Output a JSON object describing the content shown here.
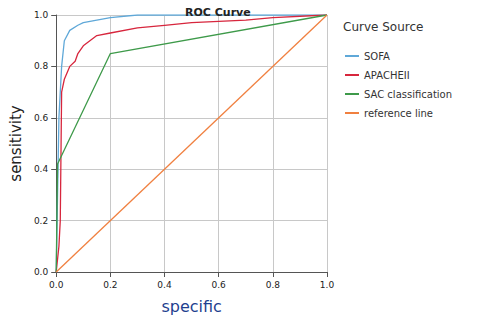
{
  "chart_data": {
    "type": "line",
    "title": "ROC Curve",
    "x_label": "specific",
    "y_label": "sensitivity",
    "legend_title": "Curve Source",
    "legend": "right",
    "grid": true,
    "xlim": [
      0,
      1
    ],
    "ylim": [
      0,
      1
    ],
    "xticks": [
      {
        "value": 0,
        "label": "0.0"
      },
      0.2,
      0.4,
      0.6,
      0.8,
      {
        "value": 1,
        "label": "1.0"
      }
    ],
    "yticks": [
      {
        "value": 0,
        "label": "0.0"
      },
      0.2,
      0.4,
      0.6,
      0.8,
      {
        "value": 1,
        "label": "1.0"
      }
    ],
    "series": [
      {
        "name": "SOFA",
        "color": "#5fa8d8",
        "x": [
          0,
          0.005,
          0.01,
          0.02,
          0.03,
          0.05,
          0.08,
          0.1,
          0.15,
          0.2,
          0.3,
          1
        ],
        "values": [
          0,
          0.3,
          0.6,
          0.8,
          0.9,
          0.94,
          0.96,
          0.97,
          0.98,
          0.99,
          1,
          1
        ]
      },
      {
        "name": "APACHEII",
        "color": "#d7263d",
        "x": [
          0,
          0.01,
          0.015,
          0.02,
          0.03,
          0.05,
          0.07,
          0.08,
          0.1,
          0.15,
          0.2,
          0.3,
          0.4,
          0.5,
          0.7,
          0.8,
          1
        ],
        "values": [
          0,
          0.1,
          0.2,
          0.7,
          0.75,
          0.8,
          0.82,
          0.85,
          0.88,
          0.92,
          0.93,
          0.95,
          0.96,
          0.97,
          0.98,
          0.99,
          1
        ]
      },
      {
        "name": "SAC classification",
        "color": "#3e9a4a",
        "x": [
          0,
          0.005,
          0.2,
          1
        ],
        "values": [
          0,
          0.42,
          0.85,
          1
        ]
      },
      {
        "name": "reference line",
        "color": "#f08040",
        "x": [
          0,
          1
        ],
        "values": [
          0,
          1
        ]
      }
    ]
  }
}
